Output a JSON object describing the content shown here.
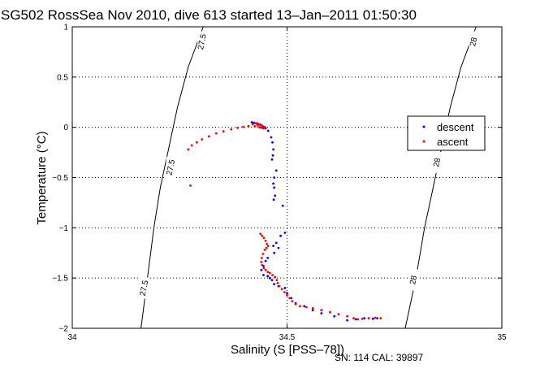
{
  "chart_data": {
    "type": "scatter",
    "title": "SG502 RossSea Nov 2010, dive 613 started 13–Jan–2011 01:50:30",
    "xlabel": "Salinity (S [PSS–78])",
    "ylabel": "Temperature (°C)",
    "xlim": [
      34,
      35
    ],
    "ylim": [
      -2,
      1
    ],
    "xticks": [
      "34",
      "34.5",
      "35"
    ],
    "yticks": [
      "1",
      "0.5",
      "0",
      "−0.5",
      "−1",
      "−1.5",
      "−2"
    ],
    "grid": true,
    "legend_position": "right",
    "footer": "SN: 114  CAL: 39897",
    "series": [
      {
        "name": "descent",
        "color": "#0000ff",
        "points": [
          [
            34.418,
            0.05
          ],
          [
            34.423,
            0.045
          ],
          [
            34.428,
            0.04
          ],
          [
            34.432,
            0.035
          ],
          [
            34.437,
            0.028
          ],
          [
            34.441,
            0.018
          ],
          [
            34.445,
            0.005
          ],
          [
            34.45,
            -0.01
          ],
          [
            34.456,
            -0.035
          ],
          [
            34.463,
            -0.1
          ],
          [
            34.466,
            -0.15
          ],
          [
            34.468,
            -0.22
          ],
          [
            34.467,
            -0.28
          ],
          [
            34.465,
            -0.32
          ],
          [
            34.475,
            -0.43
          ],
          [
            34.47,
            -0.5
          ],
          [
            34.468,
            -0.56
          ],
          [
            34.47,
            -0.6
          ],
          [
            34.472,
            -0.68
          ],
          [
            34.469,
            -0.72
          ],
          [
            34.49,
            -0.78
          ],
          [
            34.495,
            -1.05
          ],
          [
            34.485,
            -1.08
          ],
          [
            34.475,
            -1.15
          ],
          [
            34.468,
            -1.18
          ],
          [
            34.48,
            -1.2
          ],
          [
            34.47,
            -1.25
          ],
          [
            34.455,
            -1.3
          ],
          [
            34.45,
            -1.33
          ],
          [
            34.445,
            -1.38
          ],
          [
            34.44,
            -1.42
          ],
          [
            34.445,
            -1.47
          ],
          [
            34.455,
            -1.48
          ],
          [
            34.46,
            -1.5
          ],
          [
            34.465,
            -1.52
          ],
          [
            34.47,
            -1.56
          ],
          [
            34.48,
            -1.58
          ],
          [
            34.495,
            -1.6
          ],
          [
            34.5,
            -1.65
          ],
          [
            34.51,
            -1.7
          ],
          [
            34.52,
            -1.75
          ],
          [
            34.54,
            -1.78
          ],
          [
            34.56,
            -1.82
          ],
          [
            34.58,
            -1.85
          ],
          [
            34.61,
            -1.88
          ],
          [
            34.64,
            -1.92
          ],
          [
            34.66,
            -1.91
          ],
          [
            34.68,
            -1.9
          ],
          [
            34.7,
            -1.905
          ],
          [
            34.71,
            -1.9
          ]
        ]
      },
      {
        "name": "ascent",
        "color": "#ff0000",
        "points": [
          [
            34.275,
            -0.58
          ],
          [
            34.27,
            -0.22
          ],
          [
            34.278,
            -0.18
          ],
          [
            34.29,
            -0.15
          ],
          [
            34.302,
            -0.12
          ],
          [
            34.318,
            -0.09
          ],
          [
            34.335,
            -0.06
          ],
          [
            34.352,
            -0.04
          ],
          [
            34.37,
            -0.02
          ],
          [
            34.385,
            -0.005
          ],
          [
            34.398,
            0.005
          ],
          [
            34.41,
            0.012
          ],
          [
            34.42,
            0.03
          ],
          [
            34.428,
            0.04
          ],
          [
            34.432,
            0.02
          ],
          [
            34.436,
            0.0
          ],
          [
            34.44,
            -0.005
          ],
          [
            34.445,
            -0.01
          ],
          [
            34.448,
            0.002
          ],
          [
            34.442,
            0.015
          ],
          [
            34.438,
            0.022
          ],
          [
            34.431,
            0.028
          ],
          [
            34.425,
            0.01
          ],
          [
            34.438,
            -1.06
          ],
          [
            34.442,
            -1.08
          ],
          [
            34.446,
            -1.1
          ],
          [
            34.45,
            -1.13
          ],
          [
            34.453,
            -1.16
          ],
          [
            34.456,
            -1.18
          ],
          [
            34.452,
            -1.2
          ],
          [
            34.448,
            -1.22
          ],
          [
            34.444,
            -1.26
          ],
          [
            34.441,
            -1.3
          ],
          [
            34.44,
            -1.34
          ],
          [
            34.442,
            -1.37
          ],
          [
            34.446,
            -1.4
          ],
          [
            34.45,
            -1.42
          ],
          [
            34.455,
            -1.44
          ],
          [
            34.46,
            -1.45
          ],
          [
            34.466,
            -1.47
          ],
          [
            34.472,
            -1.49
          ],
          [
            34.476,
            -1.52
          ],
          [
            34.478,
            -1.55
          ],
          [
            34.482,
            -1.58
          ],
          [
            34.488,
            -1.61
          ],
          [
            34.494,
            -1.64
          ],
          [
            34.5,
            -1.67
          ],
          [
            34.506,
            -1.7
          ],
          [
            34.512,
            -1.73
          ],
          [
            34.52,
            -1.76
          ],
          [
            34.53,
            -1.78
          ],
          [
            34.545,
            -1.79
          ],
          [
            34.56,
            -1.8
          ],
          [
            34.58,
            -1.82
          ],
          [
            34.6,
            -1.84
          ],
          [
            34.62,
            -1.86
          ],
          [
            34.64,
            -1.88
          ],
          [
            34.655,
            -1.9
          ],
          [
            34.665,
            -1.91
          ],
          [
            34.675,
            -1.905
          ],
          [
            34.69,
            -1.9
          ],
          [
            34.705,
            -1.895
          ],
          [
            34.718,
            -1.9
          ]
        ]
      }
    ],
    "isopycnals": [
      {
        "label": "27.5",
        "points": [
          [
            34.305,
            1.0
          ],
          [
            34.27,
            0.6
          ],
          [
            34.245,
            0.2
          ],
          [
            34.225,
            -0.2
          ],
          [
            34.205,
            -0.6
          ],
          [
            34.19,
            -1.0
          ],
          [
            34.175,
            -1.5
          ],
          [
            34.16,
            -2.0
          ]
        ],
        "label_at": [
          [
            34.303,
            0.85
          ],
          [
            34.23,
            -0.4
          ],
          [
            34.168,
            -1.6
          ]
        ]
      },
      {
        "label": "28",
        "points": [
          [
            34.94,
            1.0
          ],
          [
            34.905,
            0.6
          ],
          [
            34.88,
            0.2
          ],
          [
            34.86,
            -0.2
          ],
          [
            34.84,
            -0.6
          ],
          [
            34.82,
            -1.0
          ],
          [
            34.8,
            -1.5
          ],
          [
            34.775,
            -2.0
          ]
        ],
        "label_at": [
          [
            34.935,
            0.85
          ],
          [
            34.85,
            -0.35
          ],
          [
            34.795,
            -1.52
          ]
        ]
      }
    ]
  }
}
